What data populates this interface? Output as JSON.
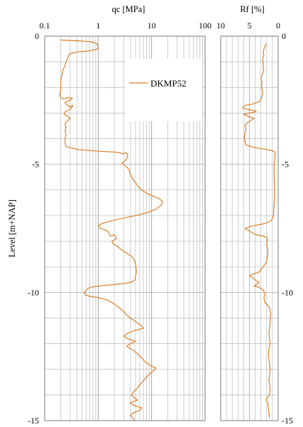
{
  "colors": {
    "series": "#d97a1f",
    "grid": "#b8b8b8",
    "frame": "#7a7a7a"
  },
  "chart_data": [
    {
      "type": "line",
      "id": "qc",
      "title": "",
      "xlabel": "qc [MPa]",
      "ylabel": "Level [m+NAP]",
      "xscale": "log",
      "xlim": [
        0.1,
        100
      ],
      "ylim": [
        -15,
        0
      ],
      "x_ticks": [
        "0.1",
        "1",
        "10",
        "100"
      ],
      "y_ticks": [
        "0",
        "-5",
        "-10",
        "-15"
      ],
      "grid": true,
      "legend": {
        "position": "top-right",
        "entries": [
          "DKMP52"
        ]
      },
      "series": [
        {
          "name": "DKMP52",
          "points": [
            [
              0.2,
              -0.15
            ],
            [
              0.4,
              -0.18
            ],
            [
              0.75,
              -0.22
            ],
            [
              0.95,
              -0.3
            ],
            [
              1.0,
              -0.4
            ],
            [
              0.98,
              -0.5
            ],
            [
              0.7,
              -0.57
            ],
            [
              0.4,
              -0.62
            ],
            [
              0.3,
              -0.68
            ],
            [
              0.28,
              -0.75
            ],
            [
              0.27,
              -0.85
            ],
            [
              0.25,
              -1.0
            ],
            [
              0.24,
              -1.15
            ],
            [
              0.22,
              -1.3
            ],
            [
              0.21,
              -1.5
            ],
            [
              0.2,
              -1.7
            ],
            [
              0.2,
              -1.9
            ],
            [
              0.2,
              -2.1
            ],
            [
              0.19,
              -2.3
            ],
            [
              0.2,
              -2.4
            ],
            [
              0.22,
              -2.45
            ],
            [
              0.28,
              -2.4
            ],
            [
              0.33,
              -2.42
            ],
            [
              0.3,
              -2.5
            ],
            [
              0.26,
              -2.55
            ],
            [
              0.24,
              -2.6
            ],
            [
              0.28,
              -2.75
            ],
            [
              0.34,
              -2.7
            ],
            [
              0.3,
              -2.85
            ],
            [
              0.24,
              -2.95
            ],
            [
              0.23,
              -3.05
            ],
            [
              0.26,
              -3.1
            ],
            [
              0.3,
              -3.2
            ],
            [
              0.27,
              -3.3
            ],
            [
              0.24,
              -3.4
            ],
            [
              0.25,
              -3.55
            ],
            [
              0.24,
              -3.7
            ],
            [
              0.25,
              -3.85
            ],
            [
              0.24,
              -4.0
            ],
            [
              0.24,
              -4.15
            ],
            [
              0.25,
              -4.3
            ],
            [
              0.4,
              -4.42
            ],
            [
              0.7,
              -4.46
            ],
            [
              1.2,
              -4.5
            ],
            [
              2.0,
              -4.52
            ],
            [
              2.6,
              -4.55
            ],
            [
              2.8,
              -4.6
            ],
            [
              3.3,
              -4.55
            ],
            [
              3.6,
              -4.65
            ],
            [
              3.4,
              -4.8
            ],
            [
              2.8,
              -4.95
            ],
            [
              3.2,
              -5.05
            ],
            [
              3.8,
              -5.2
            ],
            [
              4.0,
              -5.4
            ],
            [
              4.5,
              -5.6
            ],
            [
              5.0,
              -5.7
            ],
            [
              5.5,
              -5.85
            ],
            [
              6.5,
              -6.0
            ],
            [
              8.5,
              -6.15
            ],
            [
              11.0,
              -6.25
            ],
            [
              14.0,
              -6.35
            ],
            [
              16.0,
              -6.45
            ],
            [
              15.0,
              -6.6
            ],
            [
              12.0,
              -6.75
            ],
            [
              8.0,
              -6.9
            ],
            [
              5.0,
              -7.0
            ],
            [
              3.0,
              -7.1
            ],
            [
              1.8,
              -7.2
            ],
            [
              1.2,
              -7.3
            ],
            [
              1.0,
              -7.4
            ],
            [
              1.1,
              -7.5
            ],
            [
              1.3,
              -7.55
            ],
            [
              1.5,
              -7.6
            ],
            [
              1.7,
              -7.8
            ],
            [
              2.0,
              -7.75
            ],
            [
              2.2,
              -7.9
            ],
            [
              1.8,
              -8.0
            ],
            [
              1.9,
              -8.1
            ],
            [
              2.3,
              -8.2
            ],
            [
              2.6,
              -8.3
            ],
            [
              3.0,
              -8.4
            ],
            [
              3.6,
              -8.5
            ],
            [
              4.3,
              -8.6
            ],
            [
              4.8,
              -8.75
            ],
            [
              5.0,
              -8.9
            ],
            [
              5.1,
              -9.05
            ],
            [
              5.2,
              -9.2
            ],
            [
              5.0,
              -9.35
            ],
            [
              4.9,
              -9.5
            ],
            [
              4.2,
              -9.6
            ],
            [
              3.0,
              -9.65
            ],
            [
              1.8,
              -9.7
            ],
            [
              1.0,
              -9.75
            ],
            [
              0.7,
              -9.8
            ],
            [
              0.6,
              -9.9
            ],
            [
              0.55,
              -10.0
            ],
            [
              0.58,
              -10.1
            ],
            [
              0.7,
              -10.15
            ],
            [
              1.0,
              -10.2
            ],
            [
              1.5,
              -10.3
            ],
            [
              2.0,
              -10.45
            ],
            [
              2.5,
              -10.6
            ],
            [
              3.0,
              -10.75
            ],
            [
              3.5,
              -10.9
            ],
            [
              4.0,
              -11.0
            ],
            [
              4.8,
              -11.1
            ],
            [
              5.5,
              -11.2
            ],
            [
              6.5,
              -11.3
            ],
            [
              7.0,
              -11.4
            ],
            [
              4.5,
              -11.5
            ],
            [
              3.5,
              -11.6
            ],
            [
              3.0,
              -11.7
            ],
            [
              3.5,
              -11.8
            ],
            [
              5.0,
              -11.9
            ],
            [
              4.0,
              -12.0
            ],
            [
              3.4,
              -12.1
            ],
            [
              4.5,
              -12.25
            ],
            [
              5.5,
              -12.4
            ],
            [
              6.5,
              -12.55
            ],
            [
              7.5,
              -12.7
            ],
            [
              9.5,
              -12.85
            ],
            [
              12.0,
              -12.95
            ],
            [
              11.0,
              -13.05
            ],
            [
              9.5,
              -13.15
            ],
            [
              8.0,
              -13.3
            ],
            [
              7.0,
              -13.45
            ],
            [
              6.0,
              -13.6
            ],
            [
              5.3,
              -13.75
            ],
            [
              4.5,
              -13.9
            ],
            [
              4.2,
              -14.0
            ],
            [
              4.7,
              -14.1
            ],
            [
              5.5,
              -14.2
            ],
            [
              4.0,
              -14.3
            ],
            [
              4.5,
              -14.4
            ],
            [
              6.5,
              -14.5
            ],
            [
              6.0,
              -14.6
            ],
            [
              4.5,
              -14.7
            ],
            [
              4.0,
              -14.8
            ],
            [
              4.5,
              -14.9
            ],
            [
              4.8,
              -15.0
            ]
          ]
        }
      ]
    },
    {
      "type": "line",
      "id": "rf",
      "title": "",
      "xlabel": "Rf [%]",
      "ylabel": "",
      "xlim": [
        10,
        0
      ],
      "ylim": [
        -15,
        0
      ],
      "x_ticks": [
        "10",
        "5",
        "0"
      ],
      "y_ticks": [
        "0",
        "-5",
        "-10",
        "-15"
      ],
      "grid": true,
      "series": [
        {
          "name": "",
          "points": [
            [
              2.1,
              -0.3
            ],
            [
              2.4,
              -0.45
            ],
            [
              2.6,
              -0.6
            ],
            [
              2.5,
              -0.75
            ],
            [
              2.7,
              -0.9
            ],
            [
              2.6,
              -1.05
            ],
            [
              2.6,
              -1.2
            ],
            [
              2.5,
              -1.35
            ],
            [
              2.8,
              -1.5
            ],
            [
              3.0,
              -1.65
            ],
            [
              2.8,
              -1.8
            ],
            [
              2.9,
              -1.95
            ],
            [
              2.8,
              -2.1
            ],
            [
              2.7,
              -2.25
            ],
            [
              2.9,
              -2.4
            ],
            [
              3.2,
              -2.55
            ],
            [
              4.5,
              -2.65
            ],
            [
              5.8,
              -2.7
            ],
            [
              6.2,
              -2.8
            ],
            [
              5.5,
              -2.85
            ],
            [
              4.2,
              -2.9
            ],
            [
              3.8,
              -2.95
            ],
            [
              5.2,
              -3.0
            ],
            [
              6.0,
              -3.05
            ],
            [
              5.0,
              -3.15
            ],
            [
              4.2,
              -3.2
            ],
            [
              4.8,
              -3.3
            ],
            [
              5.5,
              -3.4
            ],
            [
              5.8,
              -3.5
            ],
            [
              5.6,
              -3.65
            ],
            [
              5.8,
              -3.8
            ],
            [
              5.9,
              -3.95
            ],
            [
              5.8,
              -4.1
            ],
            [
              5.6,
              -4.25
            ],
            [
              4.0,
              -4.35
            ],
            [
              2.0,
              -4.42
            ],
            [
              1.0,
              -4.47
            ],
            [
              0.6,
              -4.52
            ],
            [
              0.5,
              -4.6
            ],
            [
              0.6,
              -4.8
            ],
            [
              0.7,
              -5.0
            ],
            [
              0.7,
              -5.5
            ],
            [
              0.6,
              -6.0
            ],
            [
              0.7,
              -6.5
            ],
            [
              0.8,
              -7.0
            ],
            [
              1.2,
              -7.2
            ],
            [
              2.5,
              -7.32
            ],
            [
              4.5,
              -7.4
            ],
            [
              5.8,
              -7.5
            ],
            [
              5.0,
              -7.6
            ],
            [
              4.3,
              -7.7
            ],
            [
              3.8,
              -7.75
            ],
            [
              2.6,
              -7.8
            ],
            [
              2.0,
              -7.85
            ],
            [
              1.8,
              -7.95
            ],
            [
              2.0,
              -8.05
            ],
            [
              1.9,
              -8.2
            ],
            [
              1.8,
              -8.35
            ],
            [
              1.8,
              -8.5
            ],
            [
              1.9,
              -8.65
            ],
            [
              2.0,
              -8.8
            ],
            [
              2.3,
              -8.9
            ],
            [
              2.6,
              -9.0
            ],
            [
              3.0,
              -9.1
            ],
            [
              3.3,
              -9.2
            ],
            [
              4.5,
              -9.3
            ],
            [
              5.0,
              -9.35
            ],
            [
              4.3,
              -9.45
            ],
            [
              3.8,
              -9.55
            ],
            [
              3.3,
              -9.6
            ],
            [
              3.8,
              -9.7
            ],
            [
              4.2,
              -9.75
            ],
            [
              3.3,
              -9.8
            ],
            [
              3.0,
              -9.85
            ],
            [
              2.6,
              -9.9
            ],
            [
              2.4,
              -10.0
            ],
            [
              2.3,
              -10.1
            ],
            [
              2.5,
              -10.2
            ],
            [
              2.4,
              -10.3
            ],
            [
              2.3,
              -10.4
            ],
            [
              1.8,
              -10.5
            ],
            [
              1.5,
              -10.6
            ],
            [
              1.3,
              -10.8
            ],
            [
              1.4,
              -11.0
            ],
            [
              1.4,
              -11.2
            ],
            [
              1.5,
              -11.4
            ],
            [
              1.6,
              -11.6
            ],
            [
              1.5,
              -11.8
            ],
            [
              1.4,
              -12.0
            ],
            [
              1.6,
              -12.2
            ],
            [
              1.7,
              -12.4
            ],
            [
              1.6,
              -12.6
            ],
            [
              1.5,
              -12.8
            ],
            [
              1.4,
              -13.0
            ],
            [
              1.5,
              -13.2
            ],
            [
              1.6,
              -13.4
            ],
            [
              1.5,
              -13.6
            ],
            [
              1.4,
              -13.8
            ],
            [
              1.5,
              -14.0
            ],
            [
              1.9,
              -14.1
            ],
            [
              2.1,
              -14.2
            ],
            [
              1.8,
              -14.3
            ],
            [
              1.7,
              -14.5
            ],
            [
              1.6,
              -14.7
            ],
            [
              1.5,
              -14.9
            ]
          ]
        }
      ]
    }
  ]
}
